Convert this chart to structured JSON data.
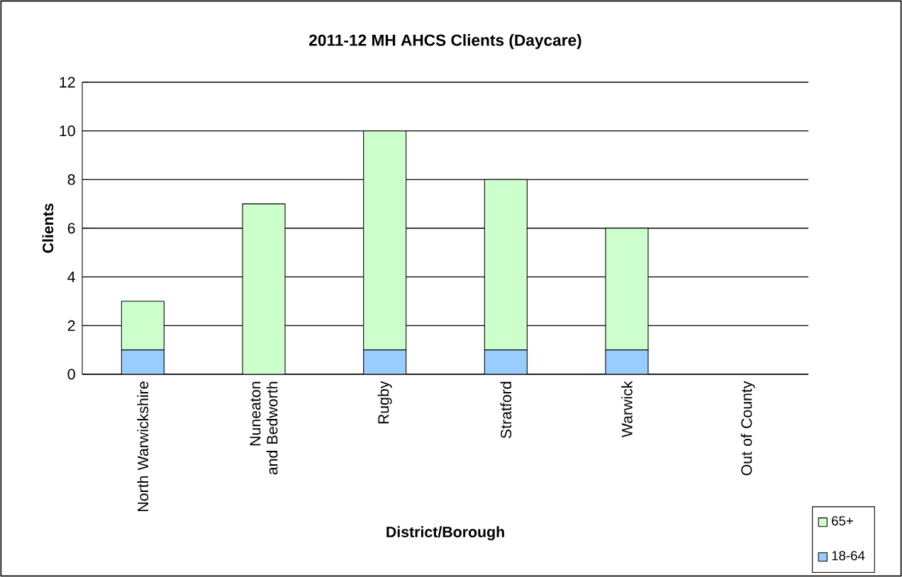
{
  "chart_data": {
    "type": "bar",
    "title": "2011-12 MH AHCS Clients (Daycare)",
    "xlabel": "District/Borough",
    "ylabel": "Clients",
    "categories": [
      "North Warwickshire",
      "Nuneaton and Bedworth",
      "Rugby",
      "Stratford",
      "Warwick",
      "Out of County"
    ],
    "stacked": true,
    "series": [
      {
        "name": "18-64",
        "color": "#99ccff",
        "values": [
          1,
          0,
          1,
          1,
          1,
          0
        ]
      },
      {
        "name": "65+",
        "color": "#ccffcc",
        "values": [
          2,
          7,
          9,
          7,
          5,
          0
        ]
      }
    ],
    "ylim": [
      0,
      12
    ],
    "yticks": [
      0,
      2,
      4,
      6,
      8,
      10,
      12
    ],
    "grid": "y",
    "legend": "bottom right"
  }
}
